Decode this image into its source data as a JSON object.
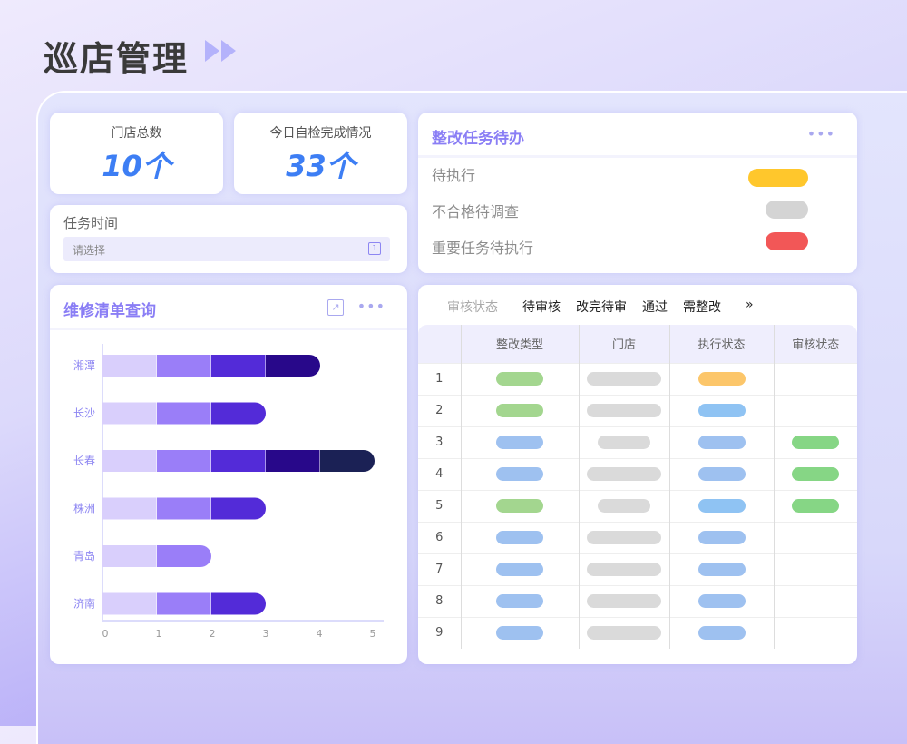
{
  "header": {
    "title": "巡店管理"
  },
  "stats": [
    {
      "label": "门店总数",
      "value": "10个"
    },
    {
      "label": "今日自检完成情况",
      "value": "33个"
    }
  ],
  "task_time": {
    "label": "任务时间",
    "placeholder": "请选择",
    "calendar_glyph": "1"
  },
  "todo": {
    "title": "整改任务待办",
    "more": "•••",
    "items": [
      {
        "label": "待执行",
        "color": "#ffc72c"
      },
      {
        "label": "不合格待调查",
        "color": "#d4d4d4"
      },
      {
        "label": "重要任务待执行",
        "color": "#f25757"
      }
    ]
  },
  "repair": {
    "title": "维修清单查询",
    "more": "•••"
  },
  "chart_data": {
    "type": "bar",
    "orientation": "horizontal",
    "stacked": true,
    "categories": [
      "湘潭",
      "长沙",
      "长春",
      "株洲",
      "青岛",
      "济南"
    ],
    "segment_colors": [
      "#d9cffc",
      "#9a7ef8",
      "#532bd8",
      "#28088a",
      "#1b2155"
    ],
    "series": [
      {
        "values": [
          1,
          1,
          1,
          1,
          1,
          1
        ]
      },
      {
        "values": [
          1,
          1,
          1,
          1,
          1,
          1
        ]
      },
      {
        "values": [
          1,
          1,
          1,
          1,
          0,
          1
        ]
      },
      {
        "values": [
          1,
          0,
          1,
          0,
          0,
          0
        ]
      },
      {
        "values": [
          0,
          0,
          1,
          0,
          0,
          0
        ]
      }
    ],
    "xlim": [
      0,
      5
    ],
    "xticks": [
      "0",
      "1",
      "2",
      "3",
      "4",
      "5"
    ],
    "grid": false
  },
  "audit": {
    "tabs": [
      "审核状态",
      "待审核",
      "改完待审",
      "通过",
      "需整改"
    ],
    "more_tabs": "»",
    "columns": [
      "",
      "整改类型",
      "门店",
      "执行状态",
      "审核状态"
    ],
    "rows": [
      {
        "index": "1",
        "type": "#a3d68f",
        "store": "long",
        "exec": "#fcc66a",
        "audit": null
      },
      {
        "index": "2",
        "type": "#a3d68f",
        "store": "long",
        "exec": "#8fc3f3",
        "audit": null
      },
      {
        "index": "3",
        "type": "#9ec1f0",
        "store": "short",
        "exec": "#9ec1f0",
        "audit": "#86d685"
      },
      {
        "index": "4",
        "type": "#9ec1f0",
        "store": "long",
        "exec": "#9ec1f0",
        "audit": "#86d685"
      },
      {
        "index": "5",
        "type": "#a3d68f",
        "store": "short",
        "exec": "#8fc3f3",
        "audit": "#86d685"
      },
      {
        "index": "6",
        "type": "#9ec1f0",
        "store": "long",
        "exec": "#9ec1f0",
        "audit": null
      },
      {
        "index": "7",
        "type": "#9ec1f0",
        "store": "long",
        "exec": "#9ec1f0",
        "audit": null
      },
      {
        "index": "8",
        "type": "#9ec1f0",
        "store": "long",
        "exec": "#9ec1f0",
        "audit": null
      },
      {
        "index": "9",
        "type": "#9ec1f0",
        "store": "long",
        "exec": "#9ec1f0",
        "audit": null
      }
    ]
  }
}
